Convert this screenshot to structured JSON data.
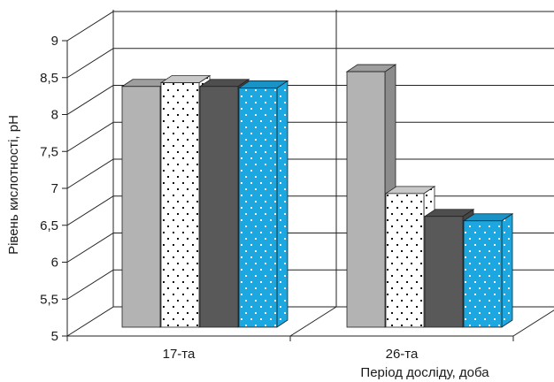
{
  "chart_data": {
    "type": "bar",
    "title": "",
    "xlabel": "Період досліду, доба",
    "ylabel": "Рівень кислотності, pH",
    "categories": [
      "17-та",
      "26-та"
    ],
    "ylim": [
      5,
      9
    ],
    "yticks": [
      "5",
      "5,5",
      "6",
      "6,5",
      "7",
      "7,5",
      "8",
      "8,5",
      "9"
    ],
    "grid": true,
    "legend": "none",
    "series": [
      {
        "values": [
          8.38,
          8.58
        ],
        "fill": "#b3b3b3",
        "pattern": "none"
      },
      {
        "values": [
          8.43,
          6.93
        ],
        "fill": "#ffffff",
        "pattern": "black-dots"
      },
      {
        "values": [
          8.38,
          6.62
        ],
        "fill": "#595959",
        "pattern": "none"
      },
      {
        "values": [
          8.36,
          6.56
        ],
        "fill": "#1ca7e0",
        "pattern": "white-dots"
      }
    ]
  }
}
